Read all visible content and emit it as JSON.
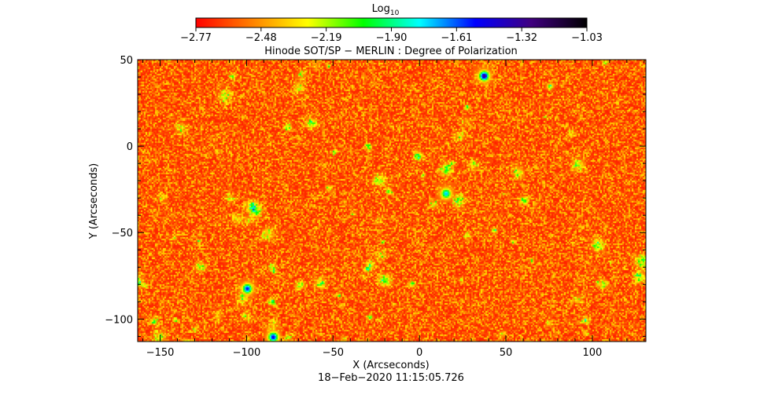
{
  "chart_data": {
    "type": "heatmap",
    "title": "Hinode SOT/SP − MERLIN : Degree of Polarization",
    "colorbar": {
      "label_base": "Log",
      "label_sub": "10",
      "ticks": [
        "−2.77",
        "−2.48",
        "−2.19",
        "−1.90",
        "−1.61",
        "−1.32",
        "−1.03"
      ],
      "range": [
        -2.77,
        -1.03
      ],
      "colors": [
        "#ff0000",
        "#ff8000",
        "#ffff00",
        "#00ff00",
        "#00ffff",
        "#0000ff",
        "#400080",
        "#000000"
      ]
    },
    "xlabel": "X (Arcseconds)",
    "ylabel": "Y (Arcseconds)",
    "xlim": [
      -163,
      131
    ],
    "ylim": [
      -113,
      50
    ],
    "xticks": [
      -150,
      -100,
      -50,
      0,
      50,
      100
    ],
    "xtick_labels": [
      "−150",
      "−100",
      "−50",
      "0",
      "50",
      "100"
    ],
    "yticks": [
      50,
      0,
      -50,
      -100
    ],
    "ytick_labels": [
      "50",
      "0",
      "−50",
      "−100"
    ],
    "typical_value": -2.6,
    "hotspots": [
      {
        "x": 37,
        "y": 41,
        "value": -1.3
      },
      {
        "x": -85,
        "y": -110,
        "value": -1.45
      },
      {
        "x": -100,
        "y": -82,
        "value": -1.5
      },
      {
        "x": 15,
        "y": -27,
        "value": -1.7
      }
    ],
    "timestamp": "18−Feb−2020 11:15:05.726"
  }
}
